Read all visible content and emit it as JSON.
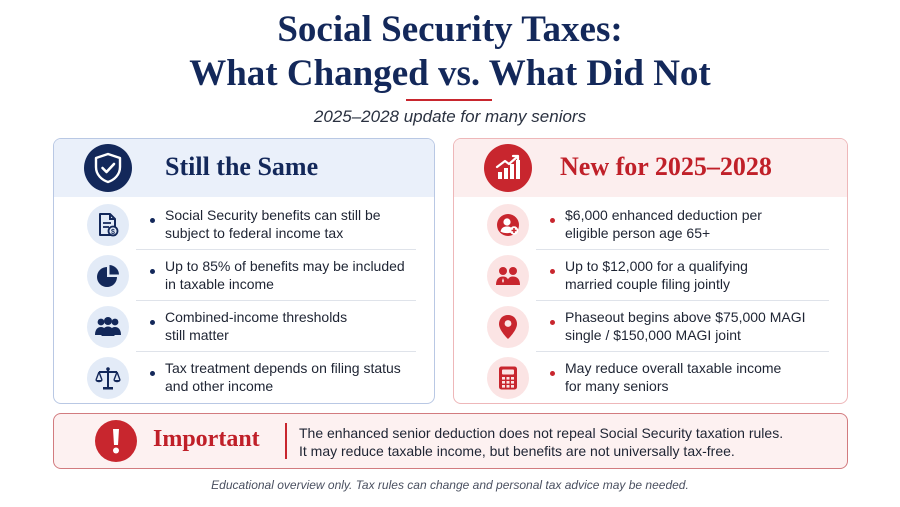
{
  "header": {
    "title_line1": "Social Security Taxes:",
    "title_line2": "What Changed vs. What Did Not",
    "subtitle": "2025–2028 update for many seniors"
  },
  "left_panel": {
    "title": "Still the Same",
    "header_icon": "shield-check-icon",
    "accent_color": "#13285a",
    "items": [
      {
        "icon": "document-icon",
        "line1": "Social Security benefits can still be",
        "line2": "subject to federal income tax"
      },
      {
        "icon": "pie-chart-icon",
        "line1": "Up to 85% of benefits may be included",
        "line2": "in taxable income"
      },
      {
        "icon": "people-group-icon",
        "line1": "Combined-income thresholds",
        "line2": "still matter"
      },
      {
        "icon": "scales-icon",
        "line1": "Tax treatment depends on filing status",
        "line2": "and other income"
      }
    ]
  },
  "right_panel": {
    "title": "New for 2025–2028",
    "header_icon": "chart-up-icon",
    "accent_color": "#c8262e",
    "items": [
      {
        "icon": "person-plus-icon",
        "line1": "$6,000 enhanced deduction per",
        "line2": "eligible person age 65+"
      },
      {
        "icon": "couple-icon",
        "line1": "Up to $12,000 for a qualifying",
        "line2": "married couple filing jointly"
      },
      {
        "icon": "location-pin-icon",
        "line1": "Phaseout begins above $75,000 MAGI",
        "line2": "single / $150,000 MAGI joint"
      },
      {
        "icon": "calculator-icon",
        "line1": "May reduce overall taxable income",
        "line2": "for many seniors"
      }
    ]
  },
  "important": {
    "icon": "exclamation-icon",
    "label": "Important",
    "line1": "The enhanced senior deduction does not repeal Social Security taxation rules.",
    "line2": "It may reduce taxable income, but benefits are not universally tax-free."
  },
  "footer": {
    "text": "Educational overview only. Tax rules can change and personal tax advice may be needed."
  }
}
